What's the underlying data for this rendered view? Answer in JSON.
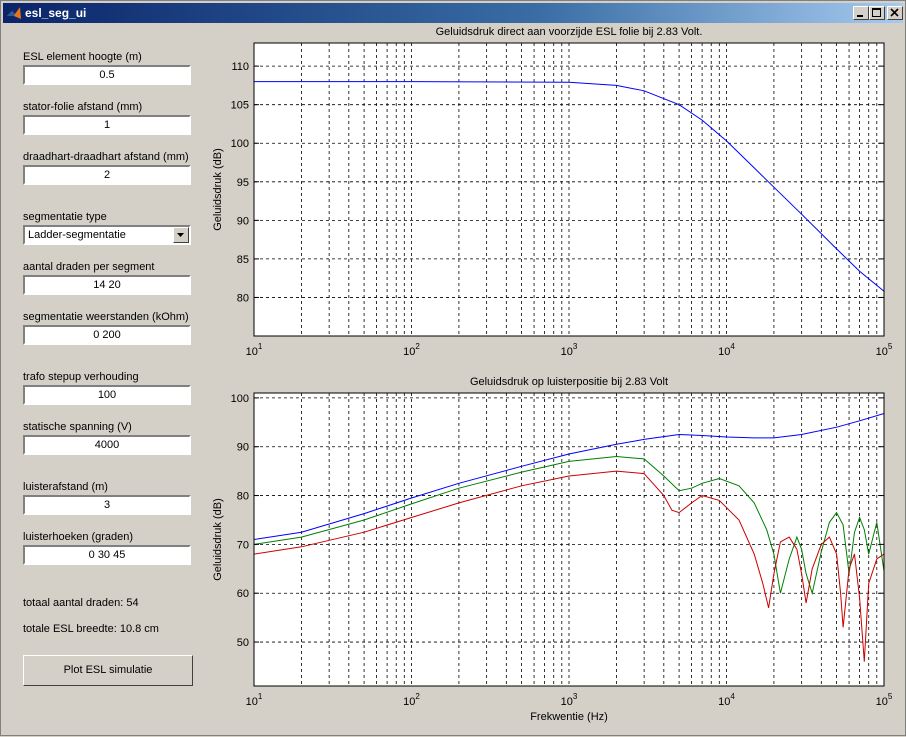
{
  "window": {
    "title": "esl_seg_ui"
  },
  "controls": {
    "element_height": {
      "label": "ESL element hoogte (m)",
      "value": "0.5"
    },
    "stator_foil": {
      "label": "stator-folie afstand (mm)",
      "value": "1"
    },
    "wire_wire": {
      "label": "draadhart-draadhart afstand (mm)",
      "value": "2"
    },
    "segmentation_type": {
      "label": "segmentatie type",
      "value": "Ladder-segmentatie"
    },
    "wires_per_segment": {
      "label": "aantal draden per segment",
      "value": "14 20"
    },
    "segment_resistors": {
      "label": "segmentatie weerstanden (kOhm)",
      "value": "0 200"
    },
    "trafo_ratio": {
      "label": "trafo stepup verhouding",
      "value": "100"
    },
    "static_voltage": {
      "label": "statische spanning (V)",
      "value": "4000"
    },
    "listen_distance": {
      "label": "luisterafstand (m)",
      "value": "3"
    },
    "listen_angles": {
      "label": "luisterhoeken (graden)",
      "value": "0 30 45"
    }
  },
  "info": {
    "total_wires": "totaal aantal draden: 54",
    "total_width": "totale ESL breedte: 10.8 cm"
  },
  "button": {
    "plot_label": "Plot ESL simulatie"
  },
  "chart_data": [
    {
      "type": "line",
      "title": "Geluidsdruk direct aan voorzijde ESL folie bij 2.83 Volt.",
      "xlabel": "",
      "ylabel": "Geluidsdruk (dB)",
      "xscale": "log",
      "xlim": [
        10,
        100000
      ],
      "ylim": [
        75,
        113
      ],
      "yticks": [
        80,
        85,
        90,
        95,
        100,
        105,
        110
      ],
      "grid": "on",
      "series": [
        {
          "color": "#0000ff",
          "x": [
            10,
            100,
            1000,
            2000,
            3000,
            5000,
            7000,
            10000,
            15000,
            20000,
            30000,
            50000,
            70000,
            100000
          ],
          "y": [
            108,
            108,
            107.9,
            107.5,
            106.8,
            105,
            103,
            100.3,
            96.8,
            94.3,
            90.8,
            86.3,
            83.4,
            80.8
          ]
        }
      ]
    },
    {
      "type": "line",
      "title": "Geluidsdruk op luisterpositie bij 2.83 Volt",
      "xlabel": "Frekwentie (Hz)",
      "ylabel": "Geluidsdruk (dB)",
      "xscale": "log",
      "xlim": [
        10,
        100000
      ],
      "ylim": [
        41,
        101
      ],
      "yticks": [
        50,
        60,
        70,
        80,
        90,
        100
      ],
      "grid": "on",
      "series": [
        {
          "color": "#0000ff",
          "x": [
            10,
            20,
            50,
            100,
            200,
            500,
            1000,
            2000,
            3000,
            5000,
            7000,
            10000,
            15000,
            20000,
            30000,
            50000,
            70000,
            100000
          ],
          "y": [
            71,
            72.5,
            76.3,
            79.5,
            82.5,
            86,
            88.5,
            90.5,
            91.5,
            92.5,
            92.3,
            92,
            91.8,
            91.8,
            92.5,
            94,
            95.3,
            96.8
          ]
        },
        {
          "color": "#008000",
          "x": [
            10,
            20,
            50,
            100,
            200,
            500,
            1000,
            2000,
            3000,
            4000,
            5000,
            6000,
            7000,
            9000,
            12000,
            15000,
            18000,
            20000,
            22000,
            25000,
            28000,
            30000,
            32000,
            35000,
            40000,
            45000,
            50000,
            55000,
            60000,
            65000,
            70000,
            75000,
            80000,
            90000,
            100000
          ],
          "y": [
            70,
            71.5,
            75,
            78.3,
            81.5,
            84.8,
            87,
            88,
            87.5,
            84,
            81,
            81.5,
            82.5,
            83.5,
            82,
            78.5,
            73,
            68,
            60,
            67,
            71.5,
            69,
            64,
            60,
            68.5,
            74.5,
            76.5,
            74,
            64,
            72.5,
            75.5,
            73,
            68,
            74.5,
            64.5
          ]
        },
        {
          "color": "#cc0000",
          "x": [
            10,
            20,
            50,
            100,
            200,
            500,
            1000,
            2000,
            3000,
            4000,
            4500,
            5000,
            6000,
            7000,
            9000,
            12000,
            15000,
            17000,
            18500,
            20000,
            22000,
            25000,
            28000,
            30000,
            32000,
            35000,
            40000,
            45000,
            50000,
            53000,
            55000,
            60000,
            65000,
            70000,
            75000,
            80000,
            90000,
            100000
          ],
          "y": [
            68,
            69.5,
            72.5,
            75.5,
            78.5,
            82,
            84,
            85,
            84.5,
            80,
            77,
            76.5,
            78.5,
            80,
            79,
            75,
            68,
            62,
            57,
            64,
            70.5,
            71.5,
            69,
            64,
            58,
            65,
            70,
            71.5,
            68,
            60,
            53,
            65,
            68,
            59,
            46,
            62,
            67,
            68
          ]
        }
      ]
    }
  ]
}
